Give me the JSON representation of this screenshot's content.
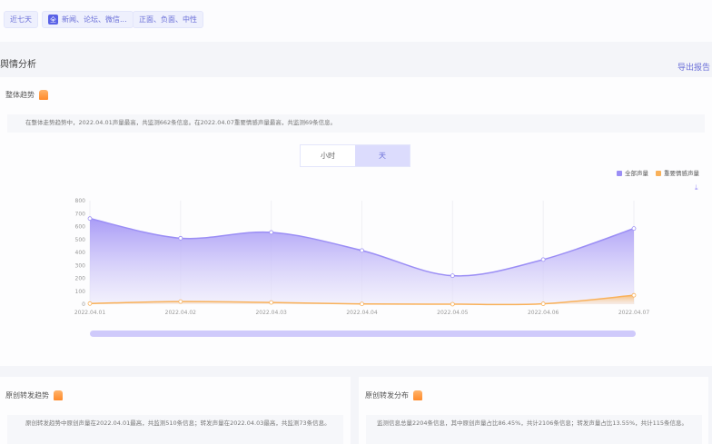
{
  "filters": {
    "time": "近七天",
    "source_icon": "全",
    "sources": "新闻、论坛、微信...",
    "sentiment": "正面、负面、中性"
  },
  "section": {
    "title": "舆情分析",
    "export": "导出报告"
  },
  "trend": {
    "title": "整体趋势",
    "summary": "在整体走势趋势中，2022.04.01声量最高，共监测662条信息。在2022.04.07重要情感声量最高，共监测69条信息。",
    "toggle": [
      "小时",
      "天"
    ],
    "active_toggle": "天"
  },
  "chart_data": {
    "type": "area",
    "x": [
      "2022.04.01",
      "2022.04.02",
      "2022.04.03",
      "2022.04.04",
      "2022.04.05",
      "2022.04.06",
      "2022.04.07"
    ],
    "series": [
      {
        "name": "全部声量",
        "values": [
          662,
          510,
          555,
          415,
          220,
          345,
          585
        ],
        "color": "#9b8ef5"
      },
      {
        "name": "重要情感声量",
        "values": [
          5,
          20,
          13,
          2,
          0,
          3,
          69
        ],
        "color": "#f9b15a"
      }
    ],
    "ylim": [
      0,
      800
    ],
    "yticks": [
      0,
      100,
      200,
      300,
      400,
      500,
      600,
      700,
      800
    ],
    "legend": "top-right",
    "grid": "vertical"
  },
  "bottom": [
    {
      "title": "原创转发趋势",
      "summary": "原创转发趋势中原创声量在2022.04.01最高，共监测510条信息；转发声量在2022.04.03最高，共监测73条信息。"
    },
    {
      "title": "原创转发分布",
      "summary": "监测信息总量2204条信息，其中原创声量占比86.45%，共计2106条信息；转发声量占比13.55%，共计115条信息。"
    }
  ]
}
